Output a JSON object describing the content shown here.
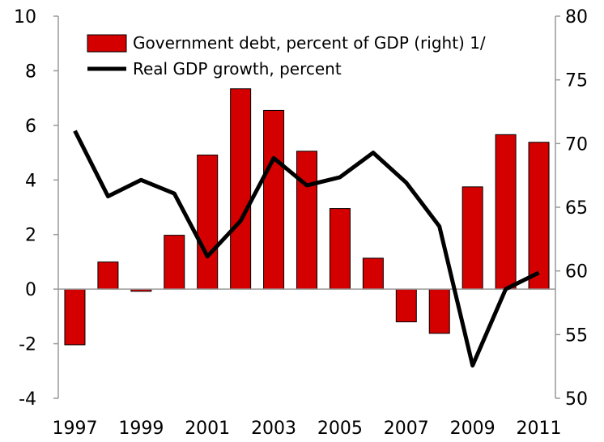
{
  "chart_data": {
    "type": "bar+line",
    "x": [
      "1997",
      "1998",
      "1999",
      "2000",
      "2001",
      "2002",
      "2003",
      "2004",
      "2005",
      "2006",
      "2007",
      "2008",
      "2009",
      "2010",
      "2011"
    ],
    "x_tick_labels": [
      "1997",
      "1999",
      "2001",
      "2003",
      "2005",
      "2007",
      "2009",
      "2011"
    ],
    "series": [
      {
        "name": "Government debt, percent of GDP (right) 1/",
        "type": "bar",
        "axis": "right",
        "color": "#d40000",
        "values": [
          54.2,
          60.7,
          58.4,
          62.8,
          69.1,
          74.3,
          72.6,
          69.4,
          64.9,
          61.0,
          56.0,
          55.1,
          66.6,
          70.7,
          70.1
        ]
      },
      {
        "name": "Real GDP growth, percent",
        "type": "line",
        "axis": "left",
        "color": "#000000",
        "values": [
          5.8,
          3.4,
          4.0,
          3.5,
          1.2,
          2.5,
          4.8,
          3.8,
          4.1,
          5.0,
          3.9,
          2.3,
          -2.8,
          0.0,
          0.6
        ]
      }
    ],
    "y_left": {
      "min": -4,
      "max": 10,
      "ticks": [
        -4,
        -2,
        0,
        2,
        4,
        6,
        8,
        10
      ]
    },
    "y_right": {
      "min": 50,
      "max": 80,
      "ticks": [
        50,
        55,
        60,
        65,
        70,
        75,
        80
      ]
    },
    "zero_line": 0,
    "grid": false,
    "legend_position": "top-left"
  }
}
